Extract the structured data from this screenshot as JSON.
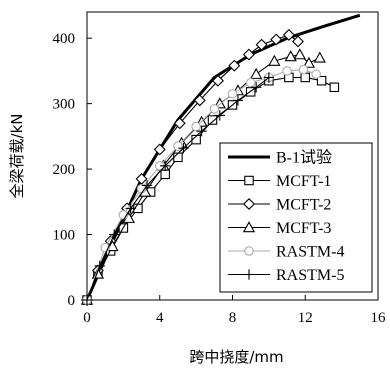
{
  "chart_data": {
    "type": "line",
    "xlabel": "跨中挠度/mm",
    "ylabel": "全梁荷载/kN",
    "xlim": [
      0,
      16
    ],
    "ylim": [
      0,
      440
    ],
    "xticks": [
      0,
      4,
      8,
      12,
      16
    ],
    "yticks": [
      0,
      100,
      200,
      300,
      400
    ],
    "grid": false,
    "legend_position": "bottom-right",
    "series": [
      {
        "name": "B-1试验",
        "marker": "none",
        "color": "#000000",
        "x": [
          0,
          1.5,
          3,
          5,
          7,
          9,
          11,
          13,
          15
        ],
        "y": [
          0,
          95,
          185,
          275,
          340,
          375,
          400,
          418,
          435
        ]
      },
      {
        "name": "MCFT-1",
        "marker": "square",
        "color": "#000000",
        "x": [
          0,
          0.6,
          1.3,
          2.0,
          2.8,
          3.5,
          4.3,
          5.0,
          6.0,
          6.9,
          8.0,
          9.0,
          10.0,
          11.1,
          12.0,
          12.9,
          13.6
        ],
        "y": [
          0,
          40,
          75,
          110,
          140,
          165,
          192,
          218,
          245,
          275,
          298,
          318,
          335,
          340,
          340,
          335,
          325
        ]
      },
      {
        "name": "MCFT-2",
        "marker": "diamond",
        "color": "#000000",
        "x": [
          0,
          0.6,
          1.3,
          2.2,
          3.0,
          4.0,
          5.1,
          6.2,
          7.2,
          8.1,
          8.9,
          9.6,
          10.4,
          11.1,
          11.6
        ],
        "y": [
          0,
          45,
          90,
          140,
          185,
          230,
          270,
          305,
          335,
          358,
          375,
          390,
          398,
          405,
          395
        ]
      },
      {
        "name": "MCFT-3",
        "marker": "triangle",
        "color": "#000000",
        "x": [
          0,
          0.6,
          1.4,
          2.3,
          3.2,
          4.2,
          5.2,
          6.3,
          7.3,
          8.3,
          9.3,
          10.3,
          11.2,
          11.7,
          12.2,
          12.8
        ],
        "y": [
          0,
          40,
          82,
          125,
          165,
          205,
          240,
          272,
          300,
          320,
          345,
          365,
          372,
          375,
          362,
          370
        ]
      },
      {
        "name": "RASTM-4",
        "marker": "circle",
        "color": "#aaaaaa",
        "x": [
          0,
          1.0,
          2.0,
          3.0,
          4.0,
          5.0,
          6.0,
          7.0,
          8.0,
          9.0,
          10.0,
          11.0,
          11.9,
          12.6
        ],
        "y": [
          0,
          80,
          130,
          170,
          205,
          235,
          265,
          292,
          315,
          332,
          340,
          350,
          352,
          345
        ]
      },
      {
        "name": "RASTM-5",
        "marker": "plus",
        "color": "#000000",
        "x": [
          0,
          0.7,
          1.5,
          2.4,
          3.3,
          4.3,
          5.3,
          6.3,
          7.3,
          8.3,
          9.3,
          10.0
        ],
        "y": [
          0,
          52,
          100,
          140,
          175,
          205,
          232,
          258,
          282,
          305,
          325,
          340
        ]
      }
    ]
  }
}
